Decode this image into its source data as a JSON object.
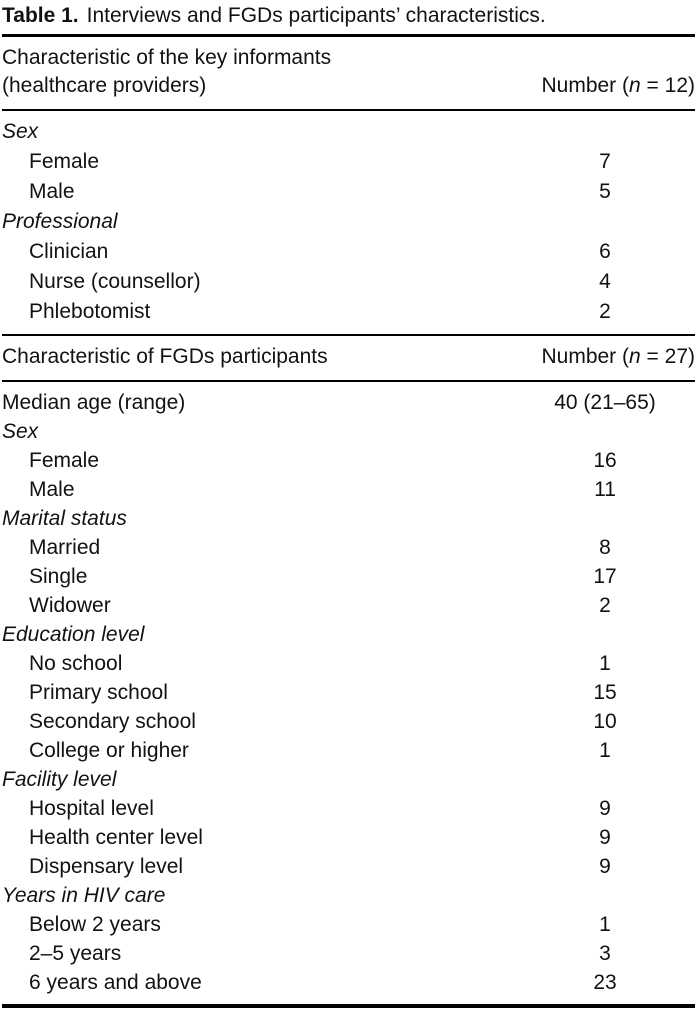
{
  "table": {
    "title": {
      "label": "Table 1.",
      "text": "Interviews and FGDs participants’ characteristics."
    },
    "sections": [
      {
        "header": {
          "characteristic_line1": "Characteristic of the key informants",
          "characteristic_line2": "(healthcare providers)",
          "number_prefix": "Number (",
          "number_n": "n",
          "number_suffix": " = 12)"
        },
        "rows": [
          {
            "label": "Sex",
            "value": "",
            "style": "category"
          },
          {
            "label": "Female",
            "value": "7",
            "style": "item"
          },
          {
            "label": "Male",
            "value": "5",
            "style": "item"
          },
          {
            "label": "Professional",
            "value": "",
            "style": "category"
          },
          {
            "label": "Clinician",
            "value": "6",
            "style": "item"
          },
          {
            "label": "Nurse (counsellor)",
            "value": "4",
            "style": "item"
          },
          {
            "label": "Phlebotomist",
            "value": "2",
            "style": "item"
          }
        ]
      },
      {
        "header": {
          "characteristic_line1": "Characteristic of FGDs participants",
          "characteristic_line2": "",
          "number_prefix": "Number (",
          "number_n": "n",
          "number_suffix": " = 27)"
        },
        "rows": [
          {
            "label": "Median age (range)",
            "value": "40 (21–65)",
            "style": "plain"
          },
          {
            "label": "Sex",
            "value": "",
            "style": "category"
          },
          {
            "label": "Female",
            "value": "16",
            "style": "item"
          },
          {
            "label": "Male",
            "value": "11",
            "style": "item"
          },
          {
            "label": "Marital status",
            "value": "",
            "style": "category"
          },
          {
            "label": "Married",
            "value": "8",
            "style": "item"
          },
          {
            "label": "Single",
            "value": "17",
            "style": "item"
          },
          {
            "label": "Widower",
            "value": "2",
            "style": "item"
          },
          {
            "label": "Education level",
            "value": "",
            "style": "category"
          },
          {
            "label": "No school",
            "value": "1",
            "style": "item"
          },
          {
            "label": "Primary school",
            "value": "15",
            "style": "item"
          },
          {
            "label": "Secondary school",
            "value": "10",
            "style": "item"
          },
          {
            "label": "College or higher",
            "value": "1",
            "style": "item"
          },
          {
            "label": "Facility level",
            "value": "",
            "style": "category"
          },
          {
            "label": "Hospital level",
            "value": "9",
            "style": "item"
          },
          {
            "label": "Health center level",
            "value": "9",
            "style": "item"
          },
          {
            "label": "Dispensary level",
            "value": "9",
            "style": "item"
          },
          {
            "label": "Years in HIV care",
            "value": "",
            "style": "category"
          },
          {
            "label": "Below 2 years",
            "value": "1",
            "style": "item"
          },
          {
            "label": "2–5 years",
            "value": "3",
            "style": "item"
          },
          {
            "label": "6 years and above",
            "value": "23",
            "style": "item"
          }
        ]
      }
    ]
  }
}
